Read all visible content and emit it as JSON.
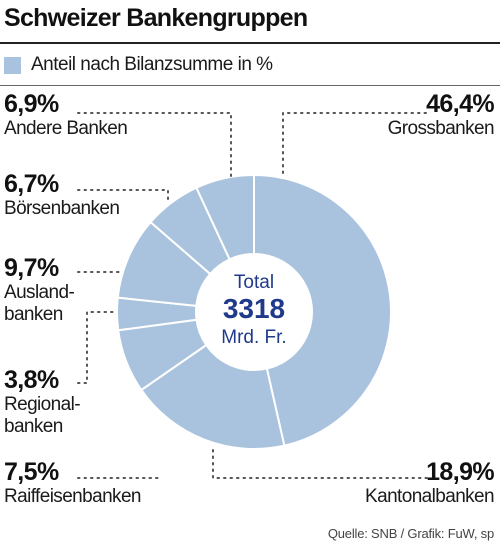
{
  "title": "Schweizer Bankengruppen",
  "source": "Quelle: SNB / Grafik: FuW, sp",
  "colors": {
    "slice": "#a9c3de",
    "separator": "#ffffff",
    "center_text": "#1f3a8a",
    "leader": "#555555"
  },
  "chart_data": {
    "type": "pie",
    "legend": "Anteil nach Bilanzsumme in %",
    "center": {
      "line1": "Total",
      "value": "3318",
      "line2": "Mrd. Fr."
    },
    "slices": [
      {
        "name": "Grossbanken",
        "label_lines": [
          "Grossbanken"
        ],
        "value": 46.4,
        "value_label": "46,4%"
      },
      {
        "name": "Kantonalbanken",
        "label_lines": [
          "Kantonalbanken"
        ],
        "value": 18.9,
        "value_label": "18,9%"
      },
      {
        "name": "Raiffeisenbanken",
        "label_lines": [
          "Raiffeisenbanken"
        ],
        "value": 7.5,
        "value_label": "7,5%"
      },
      {
        "name": "Regionalbanken",
        "label_lines": [
          "Regional-",
          "banken"
        ],
        "value": 3.8,
        "value_label": "3,8%"
      },
      {
        "name": "Auslandbanken",
        "label_lines": [
          "Ausland-",
          "banken"
        ],
        "value": 9.7,
        "value_label": "9,7%"
      },
      {
        "name": "Börsenbanken",
        "label_lines": [
          "Börsenbanken"
        ],
        "value": 6.7,
        "value_label": "6,7%"
      },
      {
        "name": "Andere Banken",
        "label_lines": [
          "Andere Banken"
        ],
        "value": 6.9,
        "value_label": "6,9%"
      }
    ]
  }
}
